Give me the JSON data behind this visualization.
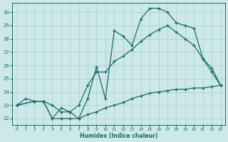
{
  "xlabel": "Humidex (Indice chaleur)",
  "background_color": "#cce8e8",
  "line_color": "#1a6b6b",
  "grid_color": "#aacccc",
  "xlim": [
    -0.5,
    23.5
  ],
  "ylim": [
    21.5,
    30.7
  ],
  "xticks": [
    0,
    1,
    2,
    3,
    4,
    5,
    6,
    7,
    8,
    9,
    10,
    11,
    12,
    13,
    14,
    15,
    16,
    17,
    18,
    19,
    20,
    21,
    22,
    23
  ],
  "yticks": [
    22,
    23,
    24,
    25,
    26,
    27,
    28,
    29,
    30
  ],
  "line1_x": [
    0,
    1,
    2,
    3,
    4,
    5,
    6,
    7,
    8,
    9,
    10,
    11,
    12,
    13,
    14,
    15,
    16,
    17,
    18,
    19,
    20,
    21,
    22,
    23
  ],
  "line1_y": [
    23.0,
    23.5,
    23.3,
    23.3,
    22.0,
    22.8,
    22.5,
    22.0,
    23.5,
    25.9,
    23.5,
    28.6,
    28.2,
    27.5,
    29.5,
    30.3,
    30.3,
    30.0,
    29.2,
    29.0,
    28.8,
    26.5,
    25.8,
    24.5
  ],
  "line2_x": [
    0,
    2,
    3,
    4,
    5,
    6,
    7,
    8,
    9,
    10,
    11,
    12,
    13,
    14,
    15,
    16,
    17,
    18,
    19,
    20,
    21,
    22,
    23
  ],
  "line2_y": [
    23.0,
    23.3,
    23.3,
    23.0,
    22.5,
    22.5,
    23.0,
    24.5,
    25.5,
    25.5,
    26.3,
    26.7,
    27.2,
    27.8,
    28.3,
    28.7,
    29.0,
    28.5,
    28.0,
    27.5,
    26.5,
    25.5,
    24.5
  ],
  "line3_x": [
    0,
    2,
    3,
    4,
    5,
    6,
    7,
    8,
    9,
    10,
    11,
    12,
    13,
    14,
    15,
    16,
    17,
    18,
    19,
    20,
    21,
    22,
    23
  ],
  "line3_y": [
    23.0,
    23.3,
    23.3,
    22.0,
    22.0,
    22.0,
    22.0,
    22.3,
    22.5,
    22.8,
    23.0,
    23.2,
    23.5,
    23.7,
    23.9,
    24.0,
    24.1,
    24.2,
    24.2,
    24.3,
    24.3,
    24.4,
    24.5
  ]
}
